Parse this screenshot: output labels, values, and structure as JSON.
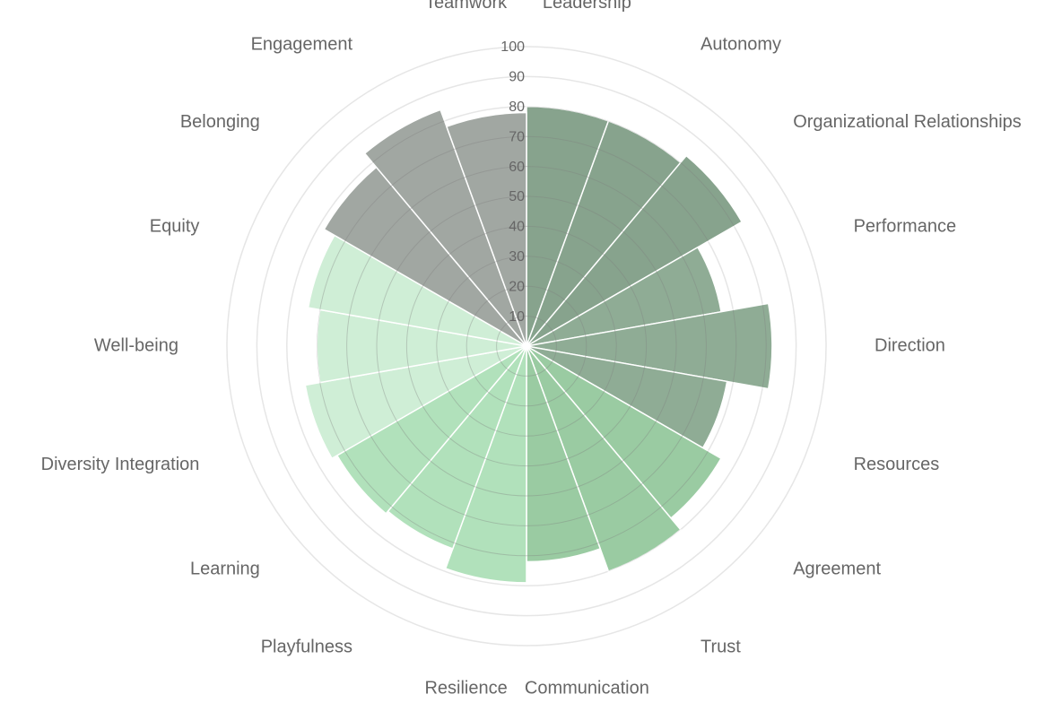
{
  "chart_data": {
    "type": "polar-area",
    "title": "",
    "r_axis": {
      "min": 0,
      "max": 100,
      "step": 10,
      "tick_labels": [
        "10",
        "20",
        "30",
        "40",
        "50",
        "60",
        "70",
        "80",
        "90",
        "100"
      ]
    },
    "categories": [
      "Leadership",
      "Autonomy",
      "Organizational Relationships",
      "Performance",
      "Direction",
      "Resources",
      "Agreement",
      "Trust",
      "Communication",
      "Resilience",
      "Playfulness",
      "Learning",
      "Diversity Integration",
      "Well-being",
      "Equity",
      "Belonging",
      "Engagement",
      "Teamwork"
    ],
    "values": [
      80,
      80,
      83,
      66,
      82,
      68,
      75,
      80,
      72,
      79,
      72,
      73,
      75,
      70,
      74,
      78,
      84,
      78
    ],
    "colors": [
      "#87a38d",
      "#87a38d",
      "#87a38d",
      "#8fac95",
      "#8fac95",
      "#8fac95",
      "#9acba2",
      "#9acba2",
      "#9acba2",
      "#b1e1bb",
      "#b1e1bb",
      "#b1e1bb",
      "#cfeed6",
      "#cfeed6",
      "#cfeed6",
      "#a1a7a2",
      "#a1a7a2",
      "#a1a7a2"
    ],
    "grid": true,
    "legend": "none"
  }
}
